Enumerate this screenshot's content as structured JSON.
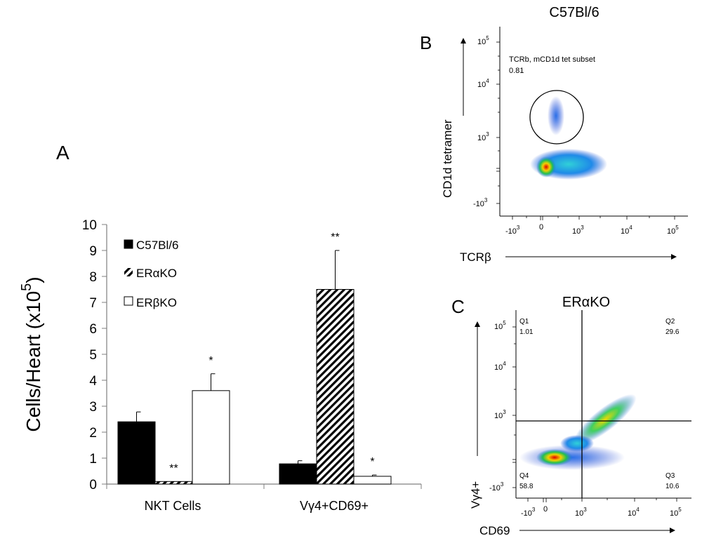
{
  "panel_labels": {
    "a": "A",
    "b": "B",
    "c": "C"
  },
  "chart_data": [
    {
      "type": "bar",
      "panel": "A",
      "ylabel": "Cells/Heart (x10",
      "ylabel_exponent": "5",
      "ylabel_close": ")",
      "ylim": [
        0,
        10
      ],
      "yticks": [
        0,
        1,
        2,
        3,
        4,
        5,
        6,
        7,
        8,
        9,
        10
      ],
      "categories": [
        "NKT Cells",
        "Vγ4+CD69+"
      ],
      "legend_position": "top-left",
      "series": [
        {
          "name": "C57Bl/6",
          "fill": "solid-black",
          "values": [
            2.4,
            0.78
          ],
          "errors": [
            0.38,
            0.12
          ],
          "significance": [
            "",
            ""
          ]
        },
        {
          "name": "ERαKO",
          "fill": "diagonal-hatch",
          "values": [
            0.1,
            7.5
          ],
          "errors": [
            0.0,
            1.5
          ],
          "significance": [
            "**",
            "**"
          ]
        },
        {
          "name": "ERβKO",
          "fill": "white",
          "values": [
            3.6,
            0.3
          ],
          "errors": [
            0.65,
            0.05
          ],
          "significance": [
            "*",
            "*"
          ]
        }
      ]
    },
    {
      "type": "scatter",
      "panel": "B",
      "title": "C57Bl/6",
      "xlabel": "TCRβ",
      "ylabel": "CD1d tetramer",
      "xticks": [
        "-10",
        "0",
        "10",
        "10",
        "10"
      ],
      "xtick_exponents": [
        "3",
        "",
        "3",
        "4",
        "5"
      ],
      "yticks": [
        "-10",
        "10",
        "10",
        "10"
      ],
      "ytick_exponents": [
        "3",
        "3",
        "4",
        "5"
      ],
      "gate": {
        "name": "TCRb, mCD1d tet subset",
        "value": "0.81"
      }
    },
    {
      "type": "scatter",
      "panel": "C",
      "title": "ERαKO",
      "xlabel": "CD69",
      "ylabel": "Vγ4+",
      "xticks": [
        "-10",
        "0",
        "10",
        "10",
        "10"
      ],
      "xtick_exponents": [
        "3",
        "",
        "3",
        "4",
        "5"
      ],
      "yticks": [
        "-10",
        "10",
        "10",
        "10"
      ],
      "ytick_exponents": [
        "3",
        "3",
        "4",
        "5"
      ],
      "quadrants": [
        {
          "name": "Q1",
          "value": "1.01"
        },
        {
          "name": "Q2",
          "value": "29.6"
        },
        {
          "name": "Q3",
          "value": "10.6"
        },
        {
          "name": "Q4",
          "value": "58.8"
        }
      ]
    }
  ]
}
